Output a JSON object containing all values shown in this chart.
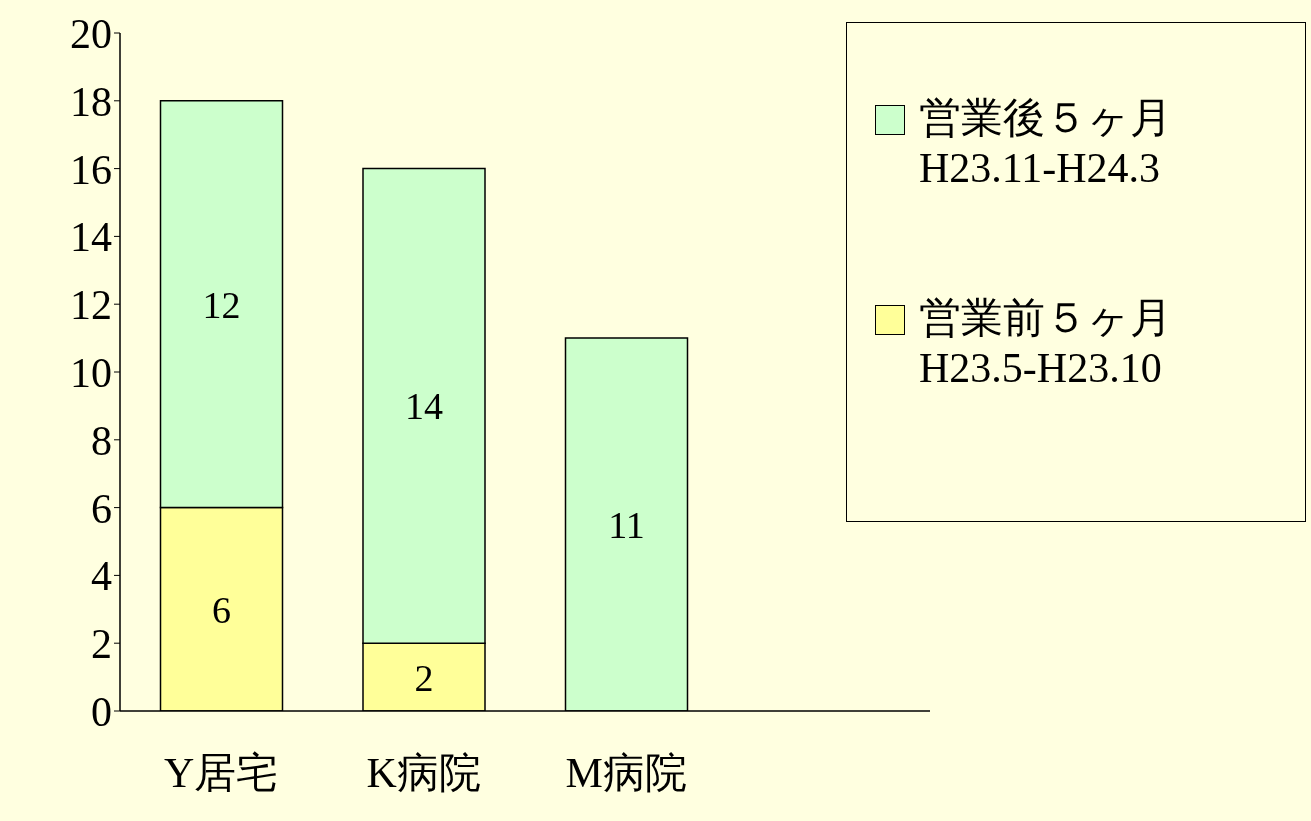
{
  "chart_data": {
    "type": "bar",
    "stacked": true,
    "categories": [
      "Y居宅",
      "K病院",
      "M病院",
      null
    ],
    "series": [
      {
        "name": "営業前５ヶ月\nH23.5-H23.10",
        "color": "#ffff99",
        "values": [
          6,
          2,
          null,
          null
        ]
      },
      {
        "name": "営業後５ヶ月\nH23.11-H24.3",
        "color": "#ccffcc",
        "values": [
          12,
          14,
          11,
          null
        ]
      }
    ],
    "ylim": [
      0,
      20
    ],
    "yticks": [
      0,
      2,
      4,
      6,
      8,
      10,
      12,
      14,
      16,
      18,
      20
    ],
    "grid": false,
    "legend": "top right",
    "data_labels": true
  }
}
